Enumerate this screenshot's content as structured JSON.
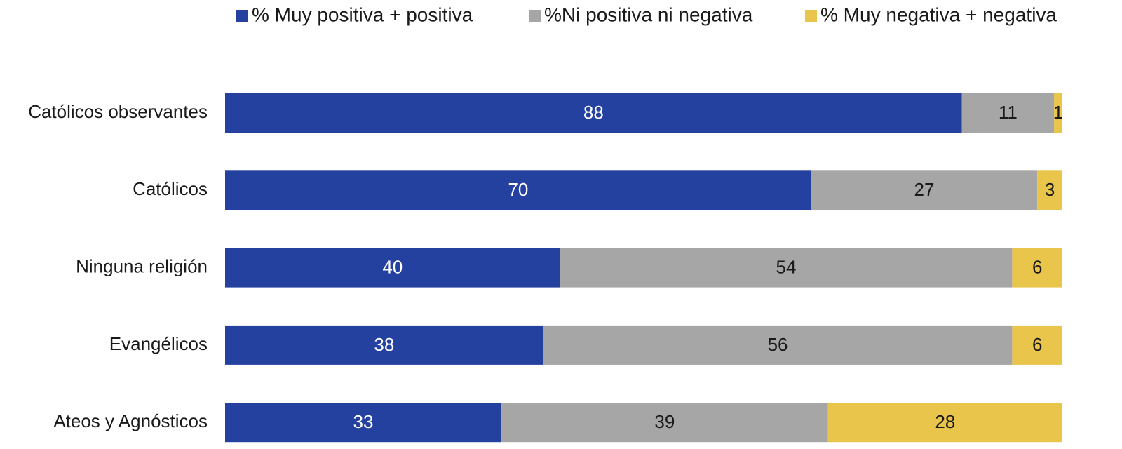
{
  "chart_data": {
    "type": "stacked_bar_horizontal",
    "categories": [
      "Católicos observantes",
      "Católicos",
      "Ninguna religión",
      "Evangélicos",
      "Ateos y Agnósticos"
    ],
    "series": [
      {
        "name": "% Muy positiva + positiva",
        "color": "#2541a0",
        "label_color": "#ffffff",
        "values": [
          88,
          70,
          40,
          38,
          33
        ]
      },
      {
        "name": "%Ni positiva ni negativa",
        "color": "#a6a6a6",
        "label_color": "#1a1a1a",
        "values": [
          11,
          27,
          54,
          56,
          39
        ]
      },
      {
        "name": "% Muy negativa + negativa",
        "color": "#e9c54b",
        "label_color": "#1a1a1a",
        "values": [
          1,
          3,
          6,
          6,
          28
        ]
      }
    ],
    "xlim": [
      0,
      100
    ],
    "legend": "top"
  }
}
